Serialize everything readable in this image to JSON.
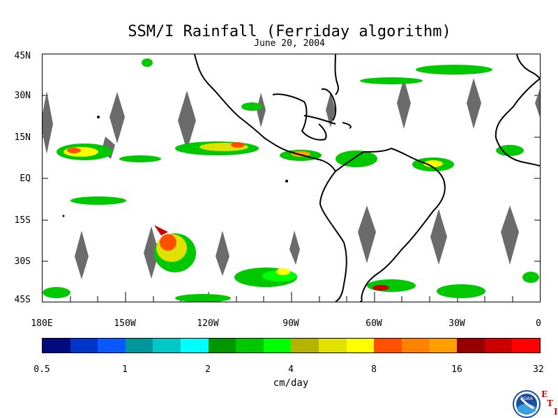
{
  "title": "SSM/I Rainfall (Ferriday algorithm)",
  "date": "June 20, 2004",
  "latitude_labels": [
    "45N",
    "30N",
    "15N",
    "EQ",
    "15S",
    "30S",
    "45S"
  ],
  "longitude_labels": [
    "180E",
    "150W",
    "120W",
    "90W",
    "60W",
    "30W",
    "0"
  ],
  "colorbar": {
    "tick_labels": [
      "0.5",
      "1",
      "2",
      "4",
      "8",
      "16",
      "32"
    ],
    "unit": "cm/day",
    "colors": [
      "#000b7d",
      "#0033c8",
      "#0a58ff",
      "#00979c",
      "#00c8c8",
      "#00ffff",
      "#009600",
      "#00c800",
      "#00ff00",
      "#b4b400",
      "#e1e100",
      "#ffff00",
      "#ff5000",
      "#ff8200",
      "#ffa000",
      "#960000",
      "#c80000",
      "#ff0000"
    ]
  },
  "logo": {
    "name": "NOAA",
    "side_letters": [
      "E",
      "T",
      "I"
    ]
  }
}
